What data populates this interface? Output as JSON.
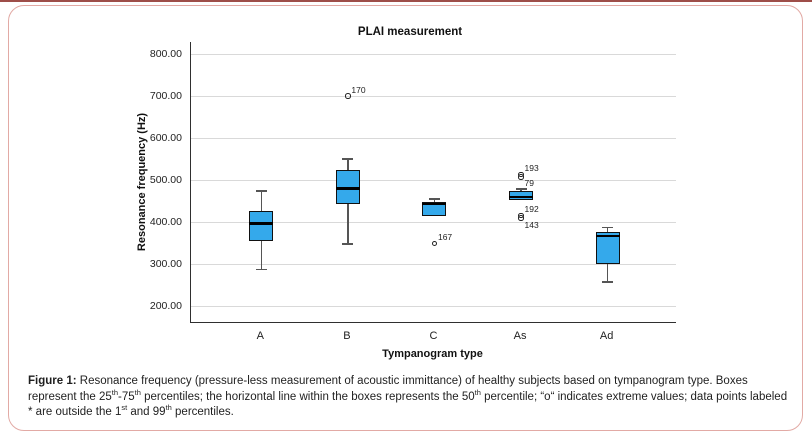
{
  "frame": {
    "border_color": "#e2aaa5",
    "top_rule_color": "#9e4e49"
  },
  "chart_data": {
    "type": "boxplot",
    "title": "PLAI measurement",
    "xlabel": "Tympanogram type",
    "ylabel": "Resonance frequency (Hz)",
    "ylim": [
      163,
      829
    ],
    "grid": true,
    "legend": "none",
    "yticks": [
      {
        "value": 800,
        "label": "800.00"
      },
      {
        "value": 700,
        "label": "700.00"
      },
      {
        "value": 600,
        "label": "600.00"
      },
      {
        "value": 500,
        "label": "500.00"
      },
      {
        "value": 400,
        "label": "400.00"
      },
      {
        "value": 300,
        "label": "300.00"
      },
      {
        "value": 200,
        "label": "200.00"
      }
    ],
    "categories": [
      "A",
      "B",
      "C",
      "As",
      "Ad"
    ],
    "box_fill": "#34a9eb",
    "box_stroke": "#111111",
    "whisker_color": "#555555",
    "gridline_color": "#d9d9d9",
    "axis_color": "#2f2f2f",
    "boxes": [
      {
        "category": "A",
        "whisker_low": 288,
        "q1": 356,
        "median": 397,
        "q3": 428,
        "whisker_high": 475,
        "outliers": []
      },
      {
        "category": "B",
        "whisker_low": 348,
        "q1": 444,
        "median": 480,
        "q3": 525,
        "whisker_high": 551,
        "outliers": [
          {
            "value": 700,
            "label": "170",
            "label_pos": "above"
          }
        ]
      },
      {
        "category": "C",
        "whisker_low": 414,
        "q1": 414,
        "median": 444,
        "q3": 448,
        "whisker_high": 456,
        "outliers": [
          {
            "value": 350,
            "label": "167",
            "label_pos": "above"
          }
        ]
      },
      {
        "category": "As",
        "whisker_low": 454,
        "q1": 454,
        "median": 460,
        "q3": 474,
        "whisker_high": 480,
        "outliers": [
          {
            "value": 514,
            "label": "193",
            "label_pos": "above"
          },
          {
            "value": 508,
            "label": "79",
            "label_pos": "below"
          },
          {
            "value": 416,
            "label": "192",
            "label_pos": "above"
          },
          {
            "value": 410,
            "label": "143",
            "label_pos": "below"
          }
        ]
      },
      {
        "category": "Ad",
        "whisker_low": 258,
        "q1": 300,
        "median": 368,
        "q3": 378,
        "whisker_high": 388,
        "outliers": []
      }
    ]
  },
  "caption": {
    "segments": [
      {
        "text": "Figure 1:",
        "bold": true
      },
      {
        "text": " Resonance frequency (pressure-less measurement of acoustic immittance) of healthy subjects based on tympanogram type. Boxes represent the 25"
      },
      {
        "text": "th",
        "sup": true
      },
      {
        "text": "-75"
      },
      {
        "text": "th",
        "sup": true
      },
      {
        "text": " percentiles; the horizontal line within the boxes represents the 50"
      },
      {
        "text": "th",
        "sup": true
      },
      {
        "text": " percentile; “o“ indicates extreme values; data points labeled * are outside the 1"
      },
      {
        "text": "st",
        "sup": true
      },
      {
        "text": " and 99"
      },
      {
        "text": "th",
        "sup": true
      },
      {
        "text": " percentiles."
      }
    ]
  }
}
